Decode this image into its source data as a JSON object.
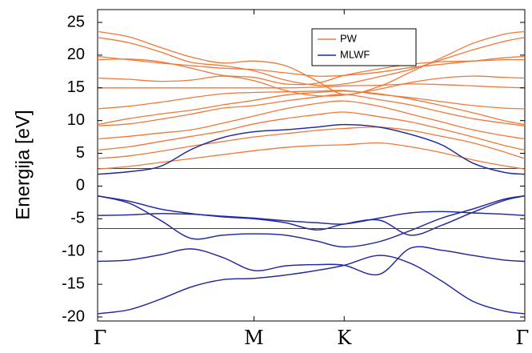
{
  "chart_data": {
    "type": "line",
    "ylabel": "Energija [eV]",
    "ylim": [
      -20,
      25
    ],
    "yticks": [
      "25",
      "20",
      "15",
      "10",
      "5",
      "0",
      "-5",
      "-10",
      "-15",
      "-20"
    ],
    "ytick_values": [
      25,
      20,
      15,
      10,
      5,
      0,
      -5,
      -10,
      -15,
      -20
    ],
    "xticks": [
      "Γ",
      "M",
      "K",
      "Γ"
    ],
    "xtick_values": [
      0,
      1,
      1.577,
      2.732
    ],
    "xlim": [
      0,
      2.732
    ],
    "grid": false,
    "legend_position": "top-center",
    "reference_lines": [
      2.7,
      -6.5
    ],
    "series": [
      {
        "name": "PW",
        "color": "#f07838",
        "bands": [
          {
            "x": [
              0,
              0.2,
              0.4,
              0.6,
              0.8,
              1.0,
              1.2,
              1.4,
              1.577,
              1.8,
              2.0,
              2.2,
              2.4,
              2.6,
              2.732
            ],
            "y": [
              -19.5,
              -18.9,
              -17.3,
              -15.4,
              -14.3,
              -14.1,
              -13.6,
              -12.9,
              -12.1,
              -10.6,
              -11.8,
              -14.5,
              -17.6,
              -19.1,
              -19.5
            ]
          },
          {
            "x": [
              0,
              0.2,
              0.4,
              0.6,
              0.8,
              1.0,
              1.2,
              1.4,
              1.577,
              1.8,
              2.0,
              2.2,
              2.4,
              2.6,
              2.732
            ],
            "y": [
              -11.5,
              -11.3,
              -10.5,
              -9.6,
              -10.9,
              -12.9,
              -12.2,
              -12.0,
              -12.1,
              -13.5,
              -9.5,
              -9.8,
              -10.6,
              -11.3,
              -11.5
            ]
          },
          {
            "x": [
              0,
              0.2,
              0.4,
              0.6,
              0.8,
              1.0,
              1.2,
              1.4,
              1.577,
              1.8,
              2.0,
              2.2,
              2.4,
              2.6,
              2.732
            ],
            "y": [
              -1.5,
              -2.6,
              -5.2,
              -8.0,
              -7.5,
              -7.3,
              -7.5,
              -8.4,
              -9.3,
              -8.5,
              -6.8,
              -4.9,
              -3.5,
              -2.0,
              -1.5
            ]
          },
          {
            "x": [
              0,
              0.2,
              0.4,
              0.6,
              0.8,
              1.0,
              1.2,
              1.4,
              1.577,
              1.8,
              2.0,
              2.2,
              2.4,
              2.6,
              2.732
            ],
            "y": [
              -1.5,
              -2.3,
              -3.5,
              -4.2,
              -4.7,
              -5.0,
              -5.6,
              -6.7,
              -5.8,
              -5.2,
              -7.5,
              -6.0,
              -4.0,
              -2.2,
              -1.5
            ]
          },
          {
            "x": [
              0,
              0.2,
              0.4,
              0.6,
              0.8,
              1.0,
              1.2,
              1.4,
              1.577,
              1.8,
              2.0,
              2.2,
              2.4,
              2.6,
              2.732
            ],
            "y": [
              -4.5,
              -4.4,
              -4.2,
              -4.3,
              -4.6,
              -4.9,
              -5.3,
              -5.6,
              -5.8,
              -4.9,
              -4.1,
              -3.9,
              -4.1,
              -4.3,
              -4.5
            ]
          },
          {
            "x": [
              0,
              0.2,
              0.4,
              0.6,
              0.8,
              1.0,
              1.2,
              1.4,
              1.577,
              1.8,
              2.0,
              2.2,
              2.4,
              2.6,
              2.732
            ],
            "y": [
              1.8,
              2.2,
              3.0,
              5.6,
              7.4,
              8.3,
              8.6,
              9.0,
              9.4,
              9.0,
              7.9,
              6.3,
              3.5,
              2.1,
              1.8
            ]
          },
          {
            "x": [
              0,
              0.2,
              0.4,
              0.6,
              0.8,
              1.0,
              1.2,
              1.4,
              1.577,
              1.8,
              2.0,
              2.2,
              2.4,
              2.6,
              2.732
            ],
            "y": [
              2.6,
              3.0,
              3.6,
              4.2,
              4.8,
              5.4,
              5.9,
              6.2,
              6.3,
              6.6,
              6.0,
              5.1,
              4.0,
              3.1,
              2.6
            ]
          },
          {
            "x": [
              0,
              0.2,
              0.4,
              0.6,
              0.8,
              1.0,
              1.2,
              1.4,
              1.577,
              1.8,
              2.0,
              2.2,
              2.4,
              2.6,
              2.732
            ],
            "y": [
              4.2,
              4.6,
              5.3,
              6.1,
              6.8,
              7.5,
              8.0,
              8.5,
              8.8,
              9.0,
              8.5,
              7.6,
              6.6,
              5.2,
              4.2
            ]
          },
          {
            "x": [
              0,
              0.2,
              0.4,
              0.6,
              0.8,
              1.0,
              1.2,
              1.4,
              1.577,
              1.8,
              2.0,
              2.2,
              2.4,
              2.6,
              2.732
            ],
            "y": [
              5.5,
              6.0,
              6.8,
              7.6,
              8.4,
              9.5,
              10.3,
              10.9,
              11.3,
              10.6,
              9.8,
              8.7,
              7.5,
              6.2,
              5.5
            ]
          },
          {
            "x": [
              0,
              0.2,
              0.4,
              0.6,
              0.8,
              1.0,
              1.2,
              1.4,
              1.577,
              1.8,
              2.0,
              2.2,
              2.4,
              2.6,
              2.732
            ],
            "y": [
              7.2,
              7.6,
              8.1,
              8.6,
              9.6,
              10.7,
              11.8,
              12.6,
              13.0,
              12.2,
              11.0,
              9.8,
              8.6,
              7.7,
              7.2
            ]
          },
          {
            "x": [
              0,
              0.2,
              0.4,
              0.6,
              0.8,
              1.0,
              1.2,
              1.4,
              1.577,
              1.8,
              2.0,
              2.2,
              2.4,
              2.6,
              2.732
            ],
            "y": [
              9.2,
              9.5,
              10.2,
              11.0,
              11.9,
              12.3,
              13.0,
              13.6,
              14.0,
              13.2,
              12.4,
              11.3,
              10.3,
              9.6,
              9.2
            ]
          },
          {
            "x": [
              0,
              0.2,
              0.4,
              0.6,
              0.8,
              1.0,
              1.2,
              1.4,
              1.577,
              1.8,
              2.0,
              2.2,
              2.4,
              2.6,
              2.732
            ],
            "y": [
              9.4,
              10.3,
              11.0,
              11.6,
              12.4,
              13.1,
              13.9,
              14.3,
              14.5,
              14.1,
              13.3,
              12.3,
              11.2,
              10.0,
              9.4
            ]
          },
          {
            "x": [
              0,
              0.2,
              0.4,
              0.6,
              0.8,
              1.0,
              1.2,
              1.4,
              1.577,
              1.8,
              2.0,
              2.2,
              2.4,
              2.6,
              2.732
            ],
            "y": [
              11.8,
              12.2,
              12.8,
              13.5,
              14.1,
              14.3,
              14.4,
              14.5,
              14.6,
              14.0,
              13.5,
              12.9,
              12.3,
              11.9,
              11.8
            ]
          },
          {
            "x": [
              0,
              0.2,
              0.4,
              0.6,
              0.8,
              1.0,
              1.2,
              1.4,
              1.577,
              1.8,
              2.0,
              2.2,
              2.4,
              2.6,
              2.732
            ],
            "y": [
              15.0,
              15.0,
              15.0,
              15.0,
              15.0,
              15.0,
              15.0,
              15.1,
              15.3,
              15.4,
              15.6,
              15.5,
              15.3,
              15.1,
              15.0
            ]
          },
          {
            "x": [
              0,
              0.2,
              0.4,
              0.6,
              0.8,
              1.0,
              1.2,
              1.4,
              1.577,
              1.8,
              2.0,
              2.2,
              2.4,
              2.6,
              2.732
            ],
            "y": [
              16.5,
              16.3,
              16.0,
              16.2,
              16.8,
              16.1,
              14.6,
              13.8,
              13.9,
              14.8,
              15.8,
              16.5,
              16.8,
              16.6,
              16.5
            ]
          },
          {
            "x": [
              0,
              0.2,
              0.4,
              0.6,
              0.8,
              1.0,
              1.2,
              1.4,
              1.577,
              1.8,
              2.0,
              2.2,
              2.4,
              2.6,
              2.732
            ],
            "y": [
              19.3,
              19.4,
              19.0,
              18.0,
              16.9,
              16.6,
              15.6,
              15.7,
              16.9,
              17.9,
              18.6,
              19.0,
              19.1,
              19.3,
              19.3
            ]
          },
          {
            "x": [
              0,
              0.2,
              0.4,
              0.6,
              0.8,
              1.0,
              1.2,
              1.4,
              1.577,
              1.8,
              2.0,
              2.2,
              2.4,
              2.6,
              2.732
            ],
            "y": [
              19.8,
              19.3,
              18.8,
              18.4,
              18.0,
              17.8,
              17.3,
              16.8,
              16.9,
              17.4,
              18.1,
              18.6,
              19.1,
              19.6,
              19.8
            ]
          },
          {
            "x": [
              0,
              0.2,
              0.4,
              0.6,
              0.8,
              1.0,
              1.2,
              1.4,
              1.577,
              1.8,
              2.0,
              2.2,
              2.4,
              2.6,
              2.732
            ],
            "y": [
              22.7,
              21.9,
              20.5,
              18.9,
              18.4,
              17.6,
              16.2,
              15.4,
              15.6,
              16.7,
              17.8,
              19.3,
              20.8,
              22.1,
              22.7
            ]
          },
          {
            "x": [
              0,
              0.2,
              0.4,
              0.6,
              0.8,
              1.0,
              1.2,
              1.4,
              1.577,
              1.8,
              2.0,
              2.2,
              2.4,
              2.6,
              2.732
            ],
            "y": [
              23.6,
              22.8,
              21.2,
              19.7,
              18.8,
              19.1,
              18.4,
              16.1,
              14.0,
              15.2,
              17.4,
              19.6,
              21.8,
              23.2,
              23.6
            ]
          }
        ]
      },
      {
        "name": "MLWF",
        "color": "#1a2aa8",
        "bands": [
          {
            "x": [
              0,
              0.2,
              0.4,
              0.6,
              0.8,
              1.0,
              1.2,
              1.4,
              1.577,
              1.8,
              2.0,
              2.2,
              2.4,
              2.6,
              2.732
            ],
            "y": [
              -19.5,
              -18.9,
              -17.3,
              -15.4,
              -14.3,
              -14.1,
              -13.6,
              -12.9,
              -12.1,
              -10.6,
              -11.8,
              -14.5,
              -17.6,
              -19.1,
              -19.5
            ]
          },
          {
            "x": [
              0,
              0.2,
              0.4,
              0.6,
              0.8,
              1.0,
              1.2,
              1.4,
              1.577,
              1.8,
              2.0,
              2.2,
              2.4,
              2.6,
              2.732
            ],
            "y": [
              -11.5,
              -11.3,
              -10.5,
              -9.6,
              -10.9,
              -12.9,
              -12.2,
              -12.0,
              -12.1,
              -13.5,
              -9.5,
              -9.8,
              -10.6,
              -11.3,
              -11.5
            ]
          },
          {
            "x": [
              0,
              0.2,
              0.4,
              0.6,
              0.8,
              1.0,
              1.2,
              1.4,
              1.577,
              1.8,
              2.0,
              2.2,
              2.4,
              2.6,
              2.732
            ],
            "y": [
              -1.5,
              -2.6,
              -5.2,
              -8.0,
              -7.5,
              -7.3,
              -7.5,
              -8.4,
              -9.3,
              -8.5,
              -6.8,
              -4.9,
              -3.5,
              -2.0,
              -1.5
            ]
          },
          {
            "x": [
              0,
              0.2,
              0.4,
              0.6,
              0.8,
              1.0,
              1.2,
              1.4,
              1.577,
              1.8,
              2.0,
              2.2,
              2.4,
              2.6,
              2.732
            ],
            "y": [
              -1.5,
              -2.3,
              -3.5,
              -4.2,
              -4.7,
              -5.0,
              -5.6,
              -6.7,
              -5.8,
              -5.2,
              -7.5,
              -6.0,
              -4.0,
              -2.2,
              -1.5
            ]
          },
          {
            "x": [
              0,
              0.2,
              0.4,
              0.6,
              0.8,
              1.0,
              1.2,
              1.4,
              1.577,
              1.8,
              2.0,
              2.2,
              2.4,
              2.6,
              2.732
            ],
            "y": [
              -4.5,
              -4.4,
              -4.2,
              -4.3,
              -4.6,
              -4.9,
              -5.3,
              -5.6,
              -5.8,
              -4.9,
              -4.1,
              -3.9,
              -4.1,
              -4.3,
              -4.5
            ]
          },
          {
            "x": [
              0,
              0.2,
              0.4,
              0.6,
              0.8,
              1.0,
              1.2,
              1.4,
              1.577,
              1.8,
              2.0,
              2.2,
              2.4,
              2.6,
              2.732
            ],
            "y": [
              1.8,
              2.2,
              3.0,
              5.6,
              7.4,
              8.3,
              8.6,
              9.0,
              9.4,
              9.0,
              7.9,
              6.3,
              3.5,
              2.1,
              1.8
            ]
          }
        ]
      }
    ]
  }
}
